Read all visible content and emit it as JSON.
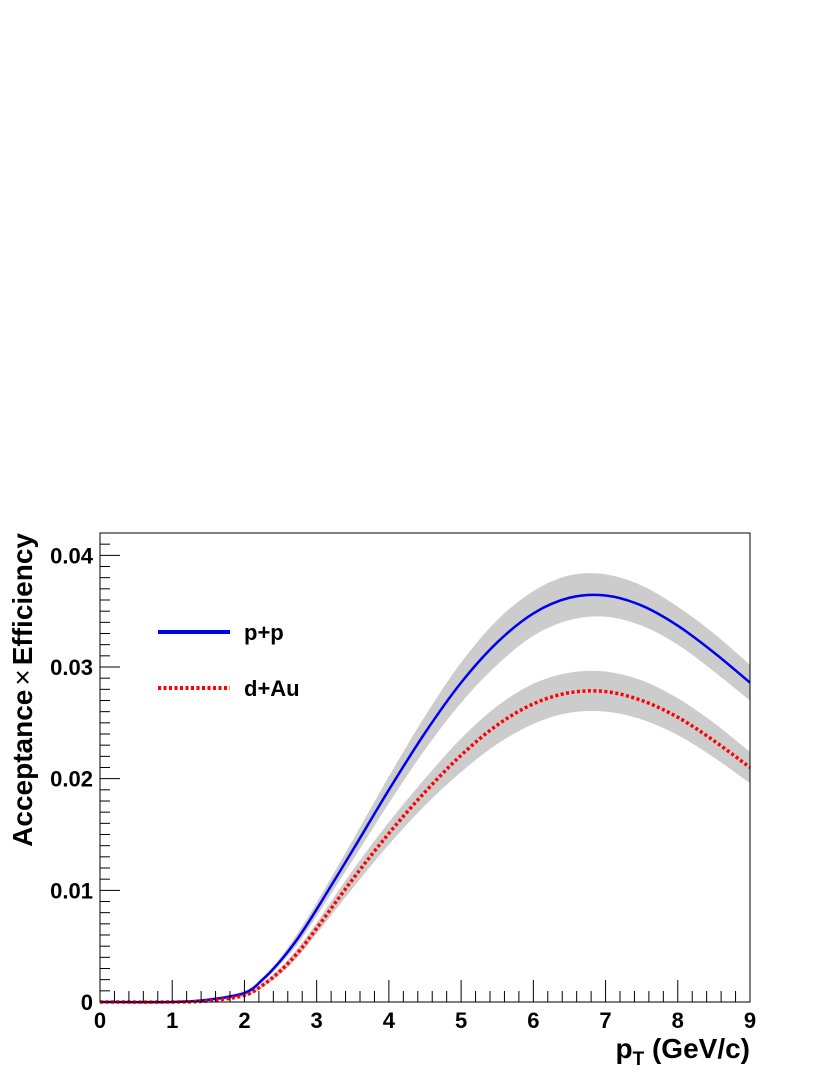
{
  "chart_data": {
    "type": "line",
    "title": "",
    "xlabel": "p",
    "xlabel_subscript": "T",
    "xlabel_units": " (GeV/c)",
    "ylabel_left": "Acceptance",
    "ylabel_times": "×",
    "ylabel_right": "Efficiency",
    "xlim": [
      0,
      9
    ],
    "ylim": [
      0,
      0.042
    ],
    "x_ticks": [
      "0",
      "1",
      "2",
      "3",
      "4",
      "5",
      "6",
      "7",
      "8",
      "9"
    ],
    "y_ticks": [
      "0",
      "0.01",
      "0.02",
      "0.03",
      "0.04"
    ],
    "grid": false,
    "legend_position": "top-left",
    "series": [
      {
        "name": "p+p",
        "color": "#0000ee",
        "style": "solid",
        "band_color": "#cccccc",
        "x": [
          0,
          1,
          1.5,
          2,
          2.25,
          2.5,
          2.75,
          3,
          3.5,
          4,
          4.5,
          5,
          5.5,
          6,
          6.5,
          7,
          7.5,
          8,
          8.5,
          9
        ],
        "y": [
          0,
          0,
          0.0002,
          0.0008,
          0.002,
          0.0037,
          0.0058,
          0.0083,
          0.0136,
          0.019,
          0.0241,
          0.0286,
          0.0322,
          0.0348,
          0.0362,
          0.0364,
          0.0355,
          0.0337,
          0.0313,
          0.0286
        ],
        "band_low": [
          0,
          0,
          0.0001,
          0.0007,
          0.0018,
          0.0034,
          0.0053,
          0.0077,
          0.0127,
          0.0178,
          0.0226,
          0.0268,
          0.0302,
          0.0328,
          0.0342,
          0.0345,
          0.0337,
          0.032,
          0.0296,
          0.027
        ],
        "band_high": [
          0,
          0,
          0.0003,
          0.001,
          0.0022,
          0.004,
          0.0063,
          0.0089,
          0.0145,
          0.0202,
          0.0256,
          0.0304,
          0.0342,
          0.0368,
          0.0382,
          0.0383,
          0.0373,
          0.0354,
          0.033,
          0.0302
        ]
      },
      {
        "name": "d+Au",
        "color": "#ff0000",
        "style": "dotted",
        "band_color": "#cccccc",
        "x": [
          0,
          1,
          1.5,
          2,
          2.25,
          2.5,
          2.75,
          3,
          3.5,
          4,
          4.5,
          5,
          5.5,
          6,
          6.5,
          7,
          7.5,
          8,
          8.5,
          9
        ],
        "y": [
          0,
          0,
          0.0001,
          0.0006,
          0.0015,
          0.0028,
          0.0045,
          0.0066,
          0.011,
          0.0151,
          0.0188,
          0.0221,
          0.0248,
          0.0267,
          0.0277,
          0.0278,
          0.027,
          0.0255,
          0.0234,
          0.021
        ],
        "band_low": [
          0,
          0,
          0.0001,
          0.0005,
          0.0013,
          0.0025,
          0.0041,
          0.0061,
          0.0102,
          0.0141,
          0.0176,
          0.0206,
          0.0231,
          0.0249,
          0.0259,
          0.026,
          0.0253,
          0.0239,
          0.0219,
          0.0196
        ],
        "band_high": [
          0,
          0,
          0.0002,
          0.0007,
          0.0017,
          0.0031,
          0.0049,
          0.0071,
          0.0118,
          0.0161,
          0.02,
          0.0236,
          0.0265,
          0.0285,
          0.0295,
          0.0296,
          0.0288,
          0.0272,
          0.025,
          0.0224
        ]
      }
    ]
  }
}
